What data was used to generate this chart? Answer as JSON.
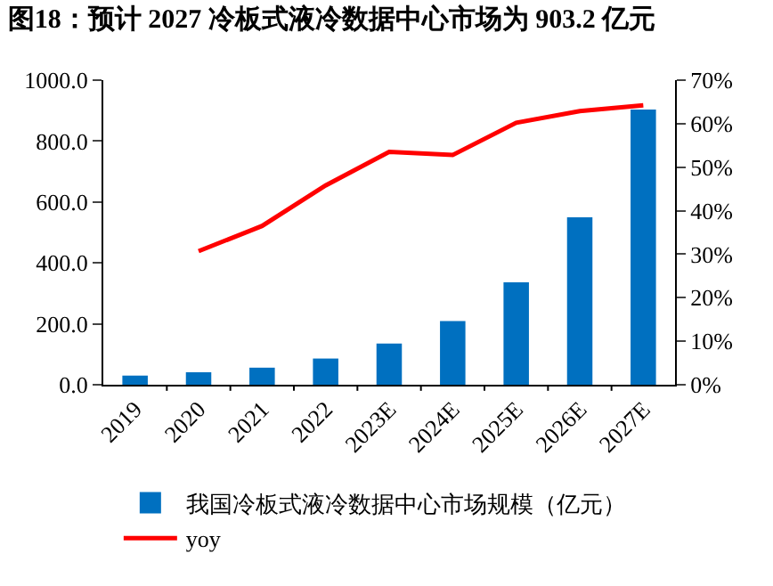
{
  "chart_data": {
    "type": "bar",
    "title": "图18：预计 2027 冷板式液冷数据中心市场为 903.2 亿元",
    "categories": [
      "2019",
      "2020",
      "2021",
      "2022",
      "2023E",
      "2024E",
      "2025E",
      "2026E",
      "2027E"
    ],
    "series": [
      {
        "name": "我国冷板式液冷数据中心市场规模（亿元）",
        "color": "#0070c0",
        "values": [
          30,
          41,
          56,
          86,
          135,
          209,
          336,
          550,
          903.2
        ]
      },
      {
        "name": "yoy",
        "color": "#ff0000",
        "type": "line",
        "axis": "y2",
        "values": [
          null,
          30.7,
          36.5,
          45.8,
          53.5,
          52.8,
          60.2,
          62.9,
          64.2
        ]
      }
    ],
    "ylim": [
      0,
      1000
    ],
    "yticks": [
      {
        "value": 0,
        "label": "0.0"
      },
      {
        "value": 200,
        "label": "200.0"
      },
      {
        "value": 400,
        "label": "400.0"
      },
      {
        "value": 600,
        "label": "600.0"
      },
      {
        "value": 800,
        "label": "800.0"
      },
      {
        "value": 1000,
        "label": "1000.0"
      }
    ],
    "y2lim": [
      0,
      70
    ],
    "y2ticks": [
      {
        "value": 0,
        "label": "0%"
      },
      {
        "value": 10,
        "label": "10%"
      },
      {
        "value": 20,
        "label": "20%"
      },
      {
        "value": 30,
        "label": "30%"
      },
      {
        "value": 40,
        "label": "40%"
      },
      {
        "value": 50,
        "label": "50%"
      },
      {
        "value": 60,
        "label": "60%"
      },
      {
        "value": 70,
        "label": "70%"
      }
    ],
    "legend": "bottom",
    "marker": "none",
    "line_style": "solid"
  }
}
